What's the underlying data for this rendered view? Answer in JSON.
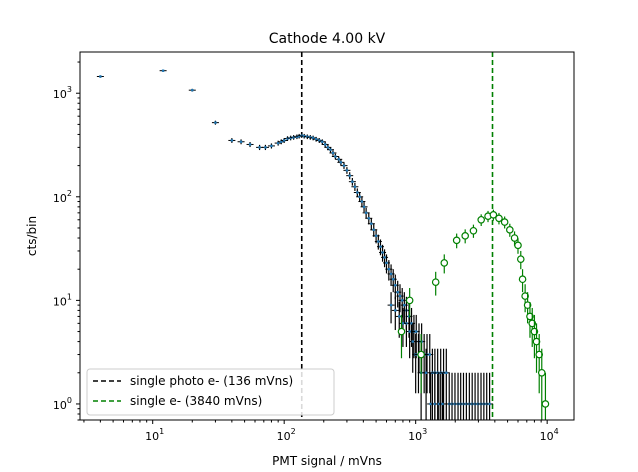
{
  "chart_data": {
    "type": "scatter",
    "title": "Cathode 4.00 kV",
    "xlabel": "PMT signal / mVns",
    "ylabel": "cts/bin",
    "xscale": "log",
    "yscale": "log",
    "xlim": [
      2.8,
      16000
    ],
    "ylim": [
      0.7,
      2500
    ],
    "x_ticks": [
      {
        "value": 10,
        "base": "10",
        "exp": "1"
      },
      {
        "value": 100,
        "base": "10",
        "exp": "2"
      },
      {
        "value": 1000,
        "base": "10",
        "exp": "3"
      },
      {
        "value": 10000,
        "base": "10",
        "exp": "4"
      }
    ],
    "y_ticks": [
      {
        "value": 1,
        "base": "10",
        "exp": "0"
      },
      {
        "value": 10,
        "base": "10",
        "exp": "1"
      },
      {
        "value": 100,
        "base": "10",
        "exp": "2"
      },
      {
        "value": 1000,
        "base": "10",
        "exp": "3"
      }
    ],
    "grid": false,
    "legend_position": "lower-left",
    "series": [
      {
        "id": "photo",
        "marker": "square",
        "color": "#1f77b4",
        "error_color": "#000000",
        "points": [
          [
            4.0,
            1450
          ],
          [
            12.0,
            1650
          ],
          [
            20.0,
            1070
          ],
          [
            30.0,
            520
          ],
          [
            40.0,
            350
          ],
          [
            47.0,
            340
          ],
          [
            55.0,
            320
          ],
          [
            65.0,
            300
          ],
          [
            72.0,
            300
          ],
          [
            80.0,
            310
          ],
          [
            90.0,
            330
          ],
          [
            95.0,
            340
          ],
          [
            100.0,
            350
          ],
          [
            106.0,
            365
          ],
          [
            112.0,
            370
          ],
          [
            118.0,
            375
          ],
          [
            125.0,
            380
          ],
          [
            130.0,
            385
          ],
          [
            136.0,
            390
          ],
          [
            142.0,
            385
          ],
          [
            150.0,
            380
          ],
          [
            158.0,
            375
          ],
          [
            166.0,
            370
          ],
          [
            175.0,
            360
          ],
          [
            185.0,
            350
          ],
          [
            195.0,
            340
          ],
          [
            205.0,
            320
          ],
          [
            215.0,
            300
          ],
          [
            225.0,
            285
          ],
          [
            235.0,
            265
          ],
          [
            245.0,
            245
          ],
          [
            260.0,
            230
          ],
          [
            270.0,
            215
          ],
          [
            285.0,
            200
          ],
          [
            300.0,
            180
          ],
          [
            315.0,
            160
          ],
          [
            330.0,
            140
          ],
          [
            345.0,
            125
          ],
          [
            360.0,
            110
          ],
          [
            375.0,
            100
          ],
          [
            390.0,
            90
          ],
          [
            405.0,
            80
          ],
          [
            420.0,
            70
          ],
          [
            440.0,
            62
          ],
          [
            460.0,
            55
          ],
          [
            480.0,
            48
          ],
          [
            500.0,
            42
          ],
          [
            520.0,
            37
          ],
          [
            540.0,
            33
          ],
          [
            560.0,
            29
          ],
          [
            580.0,
            26
          ],
          [
            600.0,
            23
          ],
          [
            625.0,
            20
          ],
          [
            650.0,
            18
          ],
          [
            675.0,
            16
          ],
          [
            700.0,
            14
          ],
          [
            730.0,
            12
          ],
          [
            760.0,
            11
          ],
          [
            790.0,
            10
          ],
          [
            820.0,
            9
          ],
          [
            850.0,
            8
          ],
          [
            890.0,
            7
          ],
          [
            930.0,
            6
          ],
          [
            970.0,
            5
          ],
          [
            1010.0,
            5
          ],
          [
            1060.0,
            4
          ],
          [
            1110.0,
            4
          ],
          [
            1160.0,
            3
          ],
          [
            1220.0,
            3
          ],
          [
            1280.0,
            3
          ],
          [
            1340.0,
            2
          ],
          [
            1400.0,
            2
          ],
          [
            1470.0,
            2
          ],
          [
            1550.0,
            2
          ],
          [
            1630.0,
            2
          ],
          [
            1710.0,
            2
          ],
          [
            1800.0,
            1
          ],
          [
            1890.0,
            1
          ],
          [
            1990.0,
            1
          ],
          [
            2100.0,
            1
          ],
          [
            2200.0,
            1
          ],
          [
            2310.0,
            1
          ],
          [
            2430.0,
            1
          ],
          [
            2560.0,
            1
          ],
          [
            2690.0,
            1
          ],
          [
            2830.0,
            1
          ],
          [
            2980.0,
            1
          ],
          [
            3140.0,
            1
          ],
          [
            3300.0,
            1
          ],
          [
            3470.0,
            1
          ],
          [
            3650.0,
            1
          ],
          [
            850.0,
            6
          ],
          [
            900.0,
            5
          ],
          [
            950.0,
            4
          ],
          [
            1000.0,
            3
          ],
          [
            1050.0,
            3
          ],
          [
            1100.0,
            2
          ],
          [
            1200.0,
            2
          ],
          [
            1300.0,
            1
          ],
          [
            1400.0,
            1
          ],
          [
            1500.0,
            1
          ],
          [
            1600.0,
            1
          ],
          [
            700.0,
            8
          ],
          [
            750.0,
            7
          ],
          [
            800.0,
            6
          ],
          [
            650.0,
            9
          ]
        ]
      },
      {
        "id": "electron",
        "marker": "open-circle",
        "color": "#008000",
        "points": [
          [
            780.0,
            5
          ],
          [
            900.0,
            10
          ],
          [
            1100.0,
            3
          ],
          [
            1420.0,
            15
          ],
          [
            1650.0,
            23
          ],
          [
            2050.0,
            38
          ],
          [
            2380.0,
            42
          ],
          [
            2750.0,
            47
          ],
          [
            3150.0,
            60
          ],
          [
            3550.0,
            65
          ],
          [
            3900.0,
            67
          ],
          [
            4300.0,
            62
          ],
          [
            4750.0,
            57
          ],
          [
            5200.0,
            48
          ],
          [
            5650.0,
            40
          ],
          [
            6000.0,
            34
          ],
          [
            6300.0,
            25
          ],
          [
            6500.0,
            16
          ],
          [
            6800.0,
            11
          ],
          [
            7100.0,
            9
          ],
          [
            7400.0,
            7
          ],
          [
            7700.0,
            6
          ],
          [
            8000.0,
            5
          ],
          [
            8300.0,
            4
          ],
          [
            8700.0,
            3
          ],
          [
            9100.0,
            2
          ],
          [
            9700.0,
            1
          ]
        ]
      }
    ],
    "vlines": [
      {
        "x": 136,
        "color": "#000000",
        "label": "single photo e- (136 mVns)"
      },
      {
        "x": 3840,
        "color": "#008000",
        "label": "single e- (3840 mVns)"
      }
    ]
  }
}
